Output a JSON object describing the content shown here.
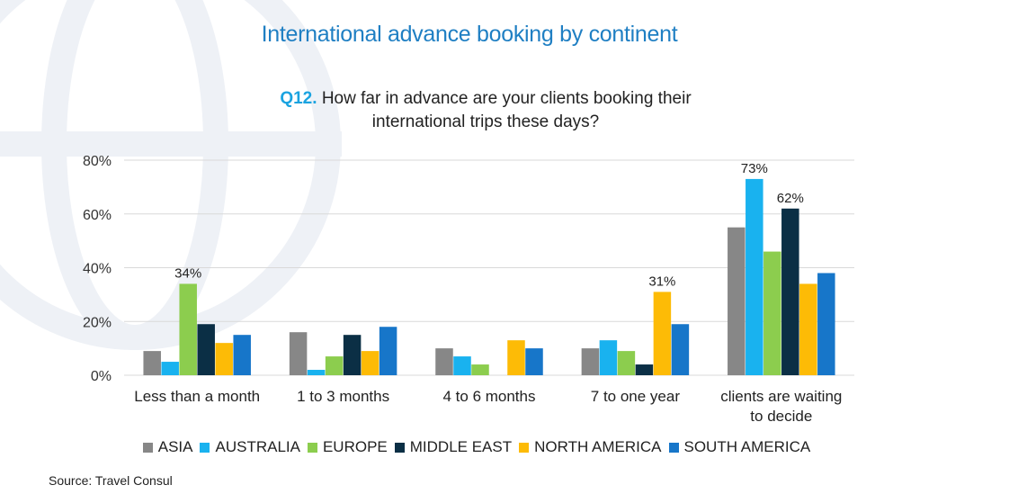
{
  "header": {
    "title": "International advance booking by continent",
    "question_number": "Q12.",
    "question_text": "How far in advance are your clients booking their international trips these days?"
  },
  "source": "Source: Travel Consul",
  "colors": {
    "title": "#1f7fc3",
    "question_number": "#1aa3e0",
    "ASIA": "#878787",
    "AUSTRALIA": "#19b2ef",
    "EUROPE": "#8ccd4e",
    "MIDDLE EAST": "#0b2f45",
    "NORTH AMERICA": "#fdbb06",
    "SOUTH AMERICA": "#1776c9"
  },
  "chart_data": {
    "type": "bar",
    "categories": [
      "Less than a month",
      "1 to 3 months",
      "4 to 6 months",
      "7 to one year",
      "clients are waiting to decide"
    ],
    "series": [
      {
        "name": "ASIA",
        "values": [
          9,
          16,
          10,
          10,
          55
        ]
      },
      {
        "name": "AUSTRALIA",
        "values": [
          5,
          2,
          7,
          13,
          73
        ]
      },
      {
        "name": "EUROPE",
        "values": [
          34,
          7,
          4,
          9,
          46
        ]
      },
      {
        "name": "MIDDLE EAST",
        "values": [
          19,
          15,
          0,
          4,
          62
        ]
      },
      {
        "name": "NORTH AMERICA",
        "values": [
          12,
          9,
          13,
          31,
          34
        ]
      },
      {
        "name": "SOUTH AMERICA",
        "values": [
          15,
          18,
          10,
          19,
          38
        ]
      }
    ],
    "data_labels": [
      {
        "series": "EUROPE",
        "category": "Less than a month",
        "text": "34%"
      },
      {
        "series": "NORTH AMERICA",
        "category": "7 to one year",
        "text": "31%"
      },
      {
        "series": "AUSTRALIA",
        "category": "clients are waiting to decide",
        "text": "73%"
      },
      {
        "series": "MIDDLE EAST",
        "category": "clients are waiting to decide",
        "text": "62%"
      }
    ],
    "yticks": [
      "0%",
      "20%",
      "40%",
      "60%",
      "80%"
    ],
    "ylim": [
      0,
      80
    ],
    "grid": true,
    "legend_position": "bottom"
  }
}
